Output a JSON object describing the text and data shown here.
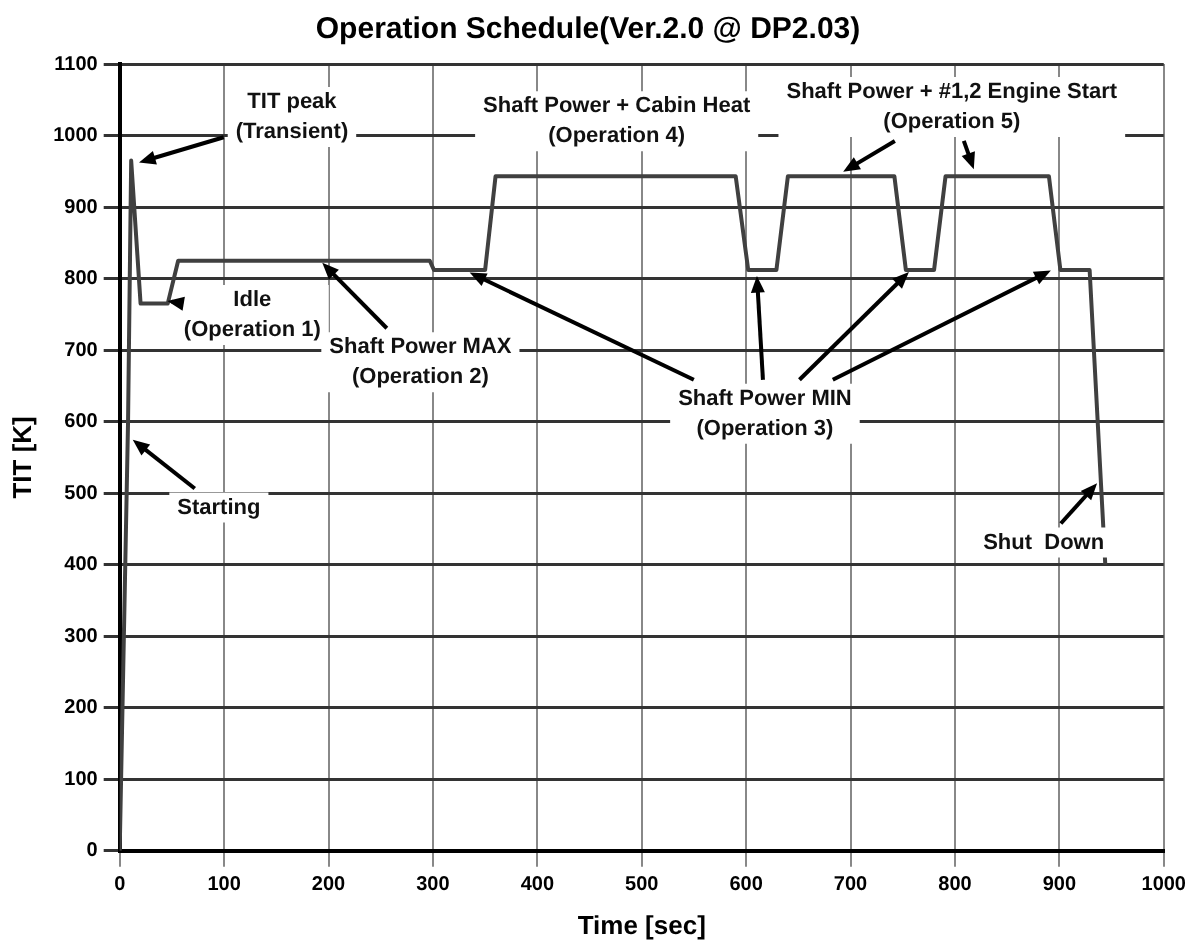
{
  "chart_data": {
    "type": "line",
    "title": "Operation Schedule(Ver.2.0 @ DP2.03)",
    "xlabel": "Time [sec]",
    "ylabel": "TIT [K]",
    "x": [
      0,
      8,
      11,
      20,
      46,
      56,
      297,
      301,
      350,
      360,
      590,
      602,
      629,
      640,
      742,
      753,
      780,
      791,
      890,
      901,
      929,
      944
    ],
    "series": [
      {
        "color": "#404040",
        "values": [
          0,
          600,
          965,
          765,
          765,
          825,
          825,
          812,
          812,
          943,
          943,
          812,
          812,
          943,
          943,
          812,
          812,
          943,
          943,
          812,
          812,
          400
        ]
      }
    ],
    "xlim": [
      0,
      1000
    ],
    "xticks": [
      0,
      100,
      200,
      300,
      400,
      500,
      600,
      700,
      800,
      900,
      1000
    ],
    "ylim": [
      0,
      1100
    ],
    "yticks": [
      0,
      100,
      200,
      300,
      400,
      500,
      600,
      700,
      800,
      900,
      1000,
      1100
    ],
    "grid": true,
    "marker": "none",
    "line_style": "solid",
    "annotations": [
      {
        "text": "TIT peak\n(Transient)",
        "x": 13,
        "y": 960
      },
      {
        "text": "Idle\n(Operation 1)",
        "x": 40,
        "y": 770
      },
      {
        "text": "Shaft Power MAX\n(Operation 2)",
        "x": 190,
        "y": 828
      },
      "Shaft Power + Cabin Heat\n(Operation 4)",
      {
        "text": "Shaft Power + #1,2 Engine Start\n(Operation 5)",
        "x": 688,
        "y": 945
      },
      {
        "text": "Shaft Power MIN\n(Operation 3)",
        "x": 330,
        "y": 812
      },
      {
        "text": "Starting",
        "x": 8,
        "y": 580
      },
      {
        "text": "Shut  Down",
        "x": 940,
        "y": 520
      }
    ]
  }
}
